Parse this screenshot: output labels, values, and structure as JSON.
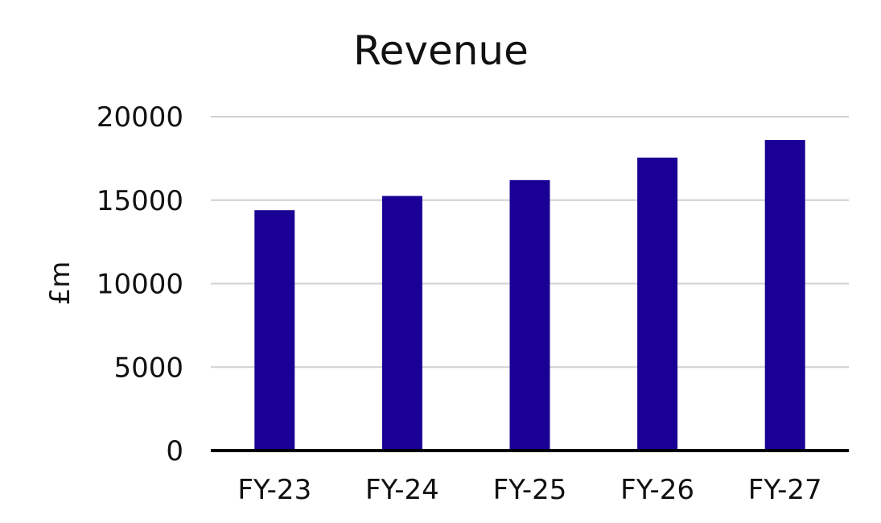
{
  "chart_data": {
    "type": "bar",
    "title": "Revenue",
    "xlabel": "",
    "ylabel": "£m",
    "categories": [
      "FY-23",
      "FY-24",
      "FY-25",
      "FY-26",
      "FY-27"
    ],
    "values": [
      14400,
      15250,
      16200,
      17550,
      18600
    ],
    "ylim": [
      0,
      20000
    ],
    "yticks": [
      0,
      5000,
      10000,
      15000,
      20000
    ],
    "grid": true,
    "legend": "none",
    "colors": {
      "bar": "#1a0094",
      "grid": "#d0d0d0",
      "axis": "#000000"
    }
  }
}
